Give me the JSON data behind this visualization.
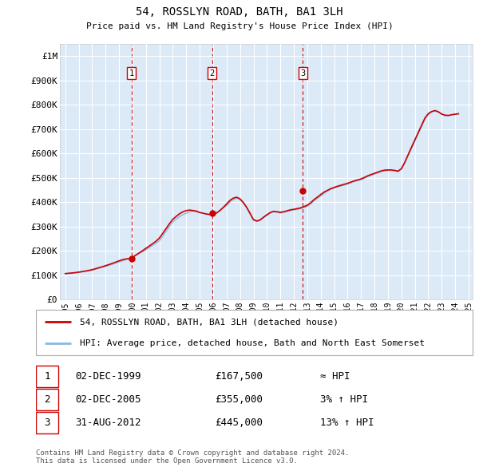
{
  "title": "54, ROSSLYN ROAD, BATH, BA1 3LH",
  "subtitle": "Price paid vs. HM Land Registry's House Price Index (HPI)",
  "background_color": "#ffffff",
  "plot_bg_color": "#dce9f7",
  "grid_color": "#ffffff",
  "line_color_red": "#cc0000",
  "line_color_blue": "#88bbdd",
  "fill_color_blue": "#c8dcf0",
  "sale_color": "#cc0000",
  "vline_color": "#cc0000",
  "ylim": [
    0,
    1050000
  ],
  "yticks": [
    0,
    100000,
    200000,
    300000,
    400000,
    500000,
    600000,
    700000,
    800000,
    900000,
    1000000
  ],
  "ytick_labels": [
    "£0",
    "£100K",
    "£200K",
    "£300K",
    "£400K",
    "£500K",
    "£600K",
    "£700K",
    "£800K",
    "£900K",
    "£1M"
  ],
  "sale_dates": [
    1999.92,
    2005.92,
    2012.67
  ],
  "sale_prices": [
    167500,
    355000,
    445000
  ],
  "sale_labels": [
    "1",
    "2",
    "3"
  ],
  "legend_entries": [
    "54, ROSSLYN ROAD, BATH, BA1 3LH (detached house)",
    "HPI: Average price, detached house, Bath and North East Somerset"
  ],
  "table_rows": [
    {
      "num": "1",
      "date": "02-DEC-1999",
      "price": "£167,500",
      "rel": "≈ HPI"
    },
    {
      "num": "2",
      "date": "02-DEC-2005",
      "price": "£355,000",
      "rel": "3% ↑ HPI"
    },
    {
      "num": "3",
      "date": "31-AUG-2012",
      "price": "£445,000",
      "rel": "13% ↑ HPI"
    }
  ],
  "footer": "Contains HM Land Registry data © Crown copyright and database right 2024.\nThis data is licensed under the Open Government Licence v3.0.",
  "hpi_years": [
    1995.0,
    1995.25,
    1995.5,
    1995.75,
    1996.0,
    1996.25,
    1996.5,
    1996.75,
    1997.0,
    1997.25,
    1997.5,
    1997.75,
    1998.0,
    1998.25,
    1998.5,
    1998.75,
    1999.0,
    1999.25,
    1999.5,
    1999.75,
    2000.0,
    2000.25,
    2000.5,
    2000.75,
    2001.0,
    2001.25,
    2001.5,
    2001.75,
    2002.0,
    2002.25,
    2002.5,
    2002.75,
    2003.0,
    2003.25,
    2003.5,
    2003.75,
    2004.0,
    2004.25,
    2004.5,
    2004.75,
    2005.0,
    2005.25,
    2005.5,
    2005.75,
    2006.0,
    2006.25,
    2006.5,
    2006.75,
    2007.0,
    2007.25,
    2007.5,
    2007.75,
    2008.0,
    2008.25,
    2008.5,
    2008.75,
    2009.0,
    2009.25,
    2009.5,
    2009.75,
    2010.0,
    2010.25,
    2010.5,
    2010.75,
    2011.0,
    2011.25,
    2011.5,
    2011.75,
    2012.0,
    2012.25,
    2012.5,
    2012.75,
    2013.0,
    2013.25,
    2013.5,
    2013.75,
    2014.0,
    2014.25,
    2014.5,
    2014.75,
    2015.0,
    2015.25,
    2015.5,
    2015.75,
    2016.0,
    2016.25,
    2016.5,
    2016.75,
    2017.0,
    2017.25,
    2017.5,
    2017.75,
    2018.0,
    2018.25,
    2018.5,
    2018.75,
    2019.0,
    2019.25,
    2019.5,
    2019.75,
    2020.0,
    2020.25,
    2020.5,
    2020.75,
    2021.0,
    2021.25,
    2021.5,
    2021.75,
    2022.0,
    2022.25,
    2022.5,
    2022.75,
    2023.0,
    2023.25,
    2023.5,
    2023.75,
    2024.0,
    2024.25
  ],
  "hpi_values": [
    106000,
    107000,
    108000,
    109000,
    111000,
    113000,
    115000,
    117000,
    120000,
    124000,
    128000,
    132000,
    136000,
    140000,
    144000,
    149000,
    154000,
    158000,
    163000,
    168000,
    173000,
    180000,
    188000,
    196000,
    204000,
    213000,
    222000,
    231000,
    241000,
    260000,
    280000,
    300000,
    318000,
    330000,
    340000,
    348000,
    354000,
    360000,
    363000,
    360000,
    357000,
    354000,
    350000,
    348000,
    348000,
    355000,
    365000,
    375000,
    385000,
    400000,
    410000,
    415000,
    410000,
    395000,
    375000,
    350000,
    325000,
    320000,
    325000,
    335000,
    345000,
    355000,
    360000,
    358000,
    355000,
    358000,
    362000,
    365000,
    368000,
    370000,
    373000,
    378000,
    382000,
    392000,
    405000,
    415000,
    425000,
    435000,
    445000,
    452000,
    458000,
    462000,
    466000,
    470000,
    474000,
    480000,
    485000,
    488000,
    492000,
    498000,
    505000,
    510000,
    515000,
    520000,
    525000,
    528000,
    530000,
    530000,
    528000,
    525000,
    535000,
    560000,
    590000,
    620000,
    650000,
    680000,
    710000,
    740000,
    760000,
    770000,
    775000,
    770000,
    760000,
    755000,
    755000,
    758000,
    760000,
    762000
  ],
  "price_line_values": [
    106000,
    107000,
    108500,
    110000,
    112000,
    114000,
    116500,
    119000,
    122000,
    126000,
    130000,
    134000,
    138500,
    143000,
    148000,
    153000,
    158500,
    163000,
    166000,
    167500,
    173000,
    182000,
    191000,
    200000,
    210000,
    219000,
    229000,
    239000,
    252000,
    271000,
    291000,
    311000,
    329000,
    341000,
    352000,
    360000,
    365000,
    367000,
    365000,
    363000,
    357000,
    354000,
    351000,
    349000,
    350000,
    355000,
    365000,
    378000,
    392000,
    407000,
    416000,
    420000,
    413000,
    398000,
    378000,
    353000,
    328000,
    322000,
    327000,
    338000,
    348000,
    357000,
    362000,
    360000,
    358000,
    360000,
    364000,
    368000,
    370000,
    373000,
    376000,
    381000,
    387000,
    397000,
    410000,
    420000,
    431000,
    441000,
    448000,
    455000,
    460000,
    465000,
    469000,
    473000,
    477000,
    482000,
    487000,
    491000,
    495000,
    501000,
    508000,
    513000,
    518000,
    523000,
    528000,
    531000,
    532000,
    532000,
    530000,
    527000,
    537000,
    563000,
    594000,
    625000,
    655000,
    685000,
    715000,
    745000,
    763000,
    772000,
    776000,
    771000,
    762000,
    757000,
    756000,
    759000,
    761000,
    763000
  ]
}
